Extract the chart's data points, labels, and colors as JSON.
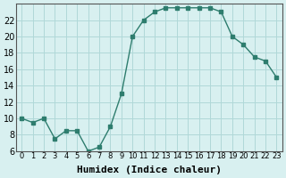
{
  "x": [
    0,
    1,
    2,
    3,
    4,
    5,
    6,
    7,
    8,
    9,
    10,
    11,
    12,
    13,
    14,
    15,
    16,
    17,
    18,
    19,
    20,
    21,
    22,
    23
  ],
  "y": [
    10,
    9.5,
    10,
    7.5,
    8.5,
    8.5,
    6,
    6.5,
    9,
    13,
    20,
    22,
    23,
    23.5,
    23.5,
    23.5,
    23.5,
    23.5,
    23,
    20,
    19,
    17.5,
    17,
    15
  ],
  "xlabel": "Humidex (Indice chaleur)",
  "xlim": [
    -0.5,
    23.5
  ],
  "ylim": [
    6,
    24
  ],
  "yticks": [
    6,
    8,
    10,
    12,
    14,
    16,
    18,
    20,
    22
  ],
  "xticks": [
    0,
    1,
    2,
    3,
    4,
    5,
    6,
    7,
    8,
    9,
    10,
    11,
    12,
    13,
    14,
    15,
    16,
    17,
    18,
    19,
    20,
    21,
    22,
    23
  ],
  "line_color": "#2e7d6e",
  "marker": "s",
  "marker_size": 3,
  "bg_color": "#d8f0f0",
  "grid_color": "#b0d8d8",
  "xlabel_fontsize": 8,
  "tick_fontsize": 6
}
